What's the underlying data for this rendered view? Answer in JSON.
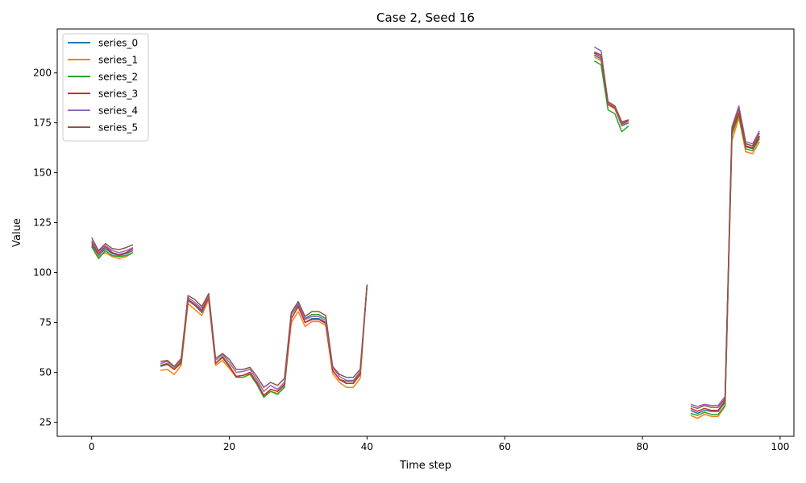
{
  "chart_data": {
    "type": "line",
    "title": "Case 2, Seed 16",
    "xlabel": "Time step",
    "ylabel": "Value",
    "xlim": [
      -5,
      102
    ],
    "ylim": [
      18,
      222
    ],
    "xticks": [
      0,
      20,
      40,
      60,
      80,
      100
    ],
    "yticks": [
      25,
      50,
      75,
      100,
      125,
      150,
      175,
      200
    ],
    "grid": false,
    "legend_position": "top-left",
    "series": [
      {
        "name": "series_0",
        "color": "#1f77b4",
        "segments": [
          {
            "x": [
              0,
              1,
              2,
              3,
              4,
              5,
              6
            ],
            "y": [
              114,
              108.5,
              112,
              109.5,
              108.5,
              109.5,
              111
            ]
          },
          {
            "x": [
              10,
              11,
              12,
              13,
              14,
              15,
              16,
              17,
              18,
              19,
              20,
              21,
              22,
              23,
              24,
              25,
              26,
              27,
              28,
              29,
              30,
              31,
              32,
              33,
              34,
              35,
              36,
              37,
              38,
              39,
              40
            ],
            "y": [
              53,
              54,
              51.5,
              55,
              86,
              83.5,
              80,
              87,
              54.5,
              57.5,
              53,
              48,
              48.5,
              50,
              45,
              38.5,
              41.5,
              40.5,
              43.5,
              77,
              83,
              75,
              77,
              77,
              75,
              51,
              46.5,
              44.5,
              44.5,
              49,
              94
            ]
          },
          {
            "x": [
              73,
              74,
              75,
              76,
              77,
              78
            ],
            "y": [
              209,
              207,
              184,
              182,
              173.5,
              175
            ]
          },
          {
            "x": [
              87,
              88,
              89,
              90,
              91,
              92,
              93,
              94,
              95,
              96,
              97
            ],
            "y": [
              31,
              29.5,
              31,
              30.5,
              30.5,
              35,
              170,
              179.5,
              163,
              162,
              168
            ]
          }
        ]
      },
      {
        "name": "series_1",
        "color": "#ff7f0e",
        "segments": [
          {
            "x": [
              0,
              1,
              2,
              3,
              4,
              5,
              6
            ],
            "y": [
              113,
              108,
              110,
              108,
              107,
              108,
              110
            ]
          },
          {
            "x": [
              10,
              11,
              12,
              13,
              14,
              15,
              16,
              17,
              18,
              19,
              20,
              21,
              22,
              23,
              24,
              25,
              26,
              27,
              28,
              29,
              30,
              31,
              32,
              33,
              34,
              35,
              36,
              37,
              38,
              39,
              40
            ],
            "y": [
              51,
              51.5,
              49,
              53.5,
              84.5,
              81.5,
              78.5,
              86.5,
              53.5,
              56,
              52,
              47.5,
              47.5,
              49.5,
              44.5,
              38.5,
              40.5,
              39.5,
              42.5,
              75,
              80.5,
              73,
              75.5,
              75.5,
              73.5,
              49.5,
              45,
              42.5,
              42.5,
              47,
              94
            ]
          },
          {
            "x": [
              73,
              74,
              75,
              76,
              77,
              78
            ],
            "y": [
              208,
              206,
              184,
              182,
              174,
              176
            ]
          },
          {
            "x": [
              87,
              88,
              89,
              90,
              91,
              92,
              93,
              94,
              95,
              96,
              97
            ],
            "y": [
              28.5,
              27,
              29,
              28,
              28,
              33,
              166,
              177.5,
              160.5,
              159.5,
              165.5
            ]
          }
        ]
      },
      {
        "name": "series_2",
        "color": "#2ca02c",
        "segments": [
          {
            "x": [
              0,
              1,
              2,
              3,
              4,
              5,
              6
            ],
            "y": [
              113,
              107,
              111,
              108.5,
              108,
              108.5,
              110
            ]
          },
          {
            "x": [
              10,
              11,
              12,
              13,
              14,
              15,
              16,
              17,
              18,
              19,
              20,
              21,
              22,
              23,
              24,
              25,
              26,
              27,
              28,
              29,
              30,
              31,
              32,
              33,
              34,
              35,
              36,
              37,
              38,
              39,
              40
            ],
            "y": [
              53.5,
              54.5,
              51.5,
              54.5,
              86.5,
              84,
              81,
              87.5,
              54.5,
              58,
              53.5,
              47.5,
              47.5,
              49,
              44,
              37.5,
              40.5,
              39,
              42.5,
              79,
              84,
              77,
              79,
              79,
              77,
              51,
              46.5,
              45.5,
              45.5,
              49.5,
              94
            ]
          },
          {
            "x": [
              73,
              74,
              75,
              76,
              77,
              78
            ],
            "y": [
              206,
              204,
              181.5,
              179.5,
              170.5,
              173.5
            ]
          },
          {
            "x": [
              87,
              88,
              89,
              90,
              91,
              92,
              93,
              94,
              95,
              96,
              97
            ],
            "y": [
              29.5,
              28.5,
              30,
              29,
              29,
              33.5,
              169,
              179,
              162,
              161,
              167
            ]
          }
        ]
      },
      {
        "name": "series_3",
        "color": "#d62728",
        "segments": [
          {
            "x": [
              0,
              1,
              2,
              3,
              4,
              5,
              6
            ],
            "y": [
              115,
              109.5,
              113,
              110,
              109,
              110,
              112
            ]
          },
          {
            "x": [
              10,
              11,
              12,
              13,
              14,
              15,
              16,
              17,
              18,
              19,
              20,
              21,
              22,
              23,
              24,
              25,
              26,
              27,
              28,
              29,
              30,
              31,
              32,
              33,
              34,
              35,
              36,
              37,
              38,
              39,
              40
            ],
            "y": [
              53.5,
              54,
              51.5,
              55.5,
              86.5,
              84,
              81,
              87.5,
              54.5,
              57.5,
              53,
              48,
              48.5,
              50,
              45,
              38.5,
              41.5,
              40.5,
              44,
              77,
              83,
              75,
              76.5,
              76.5,
              74.5,
              51,
              46.5,
              44.5,
              44.5,
              49,
              94
            ]
          },
          {
            "x": [
              73,
              74,
              75,
              76,
              77,
              78
            ],
            "y": [
              210,
              208,
              184.5,
              182.5,
              174.5,
              176
            ]
          },
          {
            "x": [
              87,
              88,
              89,
              90,
              91,
              92,
              93,
              94,
              95,
              96,
              97
            ],
            "y": [
              32,
              30.5,
              32,
              31,
              31,
              36,
              171,
              180,
              163.5,
              162.5,
              168.5
            ]
          }
        ]
      },
      {
        "name": "series_4",
        "color": "#9467bd",
        "segments": [
          {
            "x": [
              0,
              1,
              2,
              3,
              4,
              5,
              6
            ],
            "y": [
              116,
              110.5,
              113.5,
              111,
              110,
              111,
              112.5
            ]
          },
          {
            "x": [
              10,
              11,
              12,
              13,
              14,
              15,
              16,
              17,
              18,
              19,
              20,
              21,
              22,
              23,
              24,
              25,
              26,
              27,
              28,
              29,
              30,
              31,
              32,
              33,
              34,
              35,
              36,
              37,
              38,
              39,
              40
            ],
            "y": [
              54.5,
              55.5,
              52.5,
              56.5,
              87.5,
              85,
              82,
              88.5,
              56,
              59,
              55,
              50,
              50.5,
              51.5,
              46.5,
              40.5,
              43.5,
              41.5,
              45,
              79.5,
              84.5,
              76.5,
              78,
              78,
              76,
              52.5,
              48,
              46,
              46,
              50.5,
              94
            ]
          },
          {
            "x": [
              73,
              74,
              75,
              76,
              77,
              78
            ],
            "y": [
              213,
              211,
              185,
              183,
              175,
              176.5
            ]
          },
          {
            "x": [
              87,
              88,
              89,
              90,
              91,
              92,
              93,
              94,
              95,
              96,
              97
            ],
            "y": [
              34,
              33,
              34,
              33.5,
              33.5,
              38,
              173,
              183.5,
              165.5,
              164.5,
              171
            ]
          }
        ]
      },
      {
        "name": "series_5",
        "color": "#8c564b",
        "segments": [
          {
            "x": [
              0,
              1,
              2,
              3,
              4,
              5,
              6
            ],
            "y": [
              117.5,
              111,
              114.5,
              112,
              111.5,
              112.5,
              114
            ]
          },
          {
            "x": [
              10,
              11,
              12,
              13,
              14,
              15,
              16,
              17,
              18,
              19,
              20,
              21,
              22,
              23,
              24,
              25,
              26,
              27,
              28,
              29,
              30,
              31,
              32,
              33,
              34,
              35,
              36,
              37,
              38,
              39,
              40
            ],
            "y": [
              55.5,
              56,
              53,
              57,
              88.5,
              86.5,
              83,
              89.5,
              57,
              59.5,
              56.5,
              51.5,
              51.5,
              52.5,
              48,
              42.5,
              45,
              43.5,
              47,
              80,
              85.5,
              78,
              80.5,
              80.5,
              78.5,
              53,
              49,
              47.5,
              47.5,
              51.5,
              94
            ]
          },
          {
            "x": [
              73,
              74,
              75,
              76,
              77,
              78
            ],
            "y": [
              210.5,
              209,
              185.5,
              183.5,
              175.5,
              176.5
            ]
          },
          {
            "x": [
              87,
              88,
              89,
              90,
              91,
              92,
              93,
              94,
              95,
              96,
              97
            ],
            "y": [
              33,
              32,
              33.5,
              32.5,
              32.5,
              37,
              172,
              182,
              164.5,
              163.5,
              170
            ]
          }
        ]
      }
    ]
  }
}
